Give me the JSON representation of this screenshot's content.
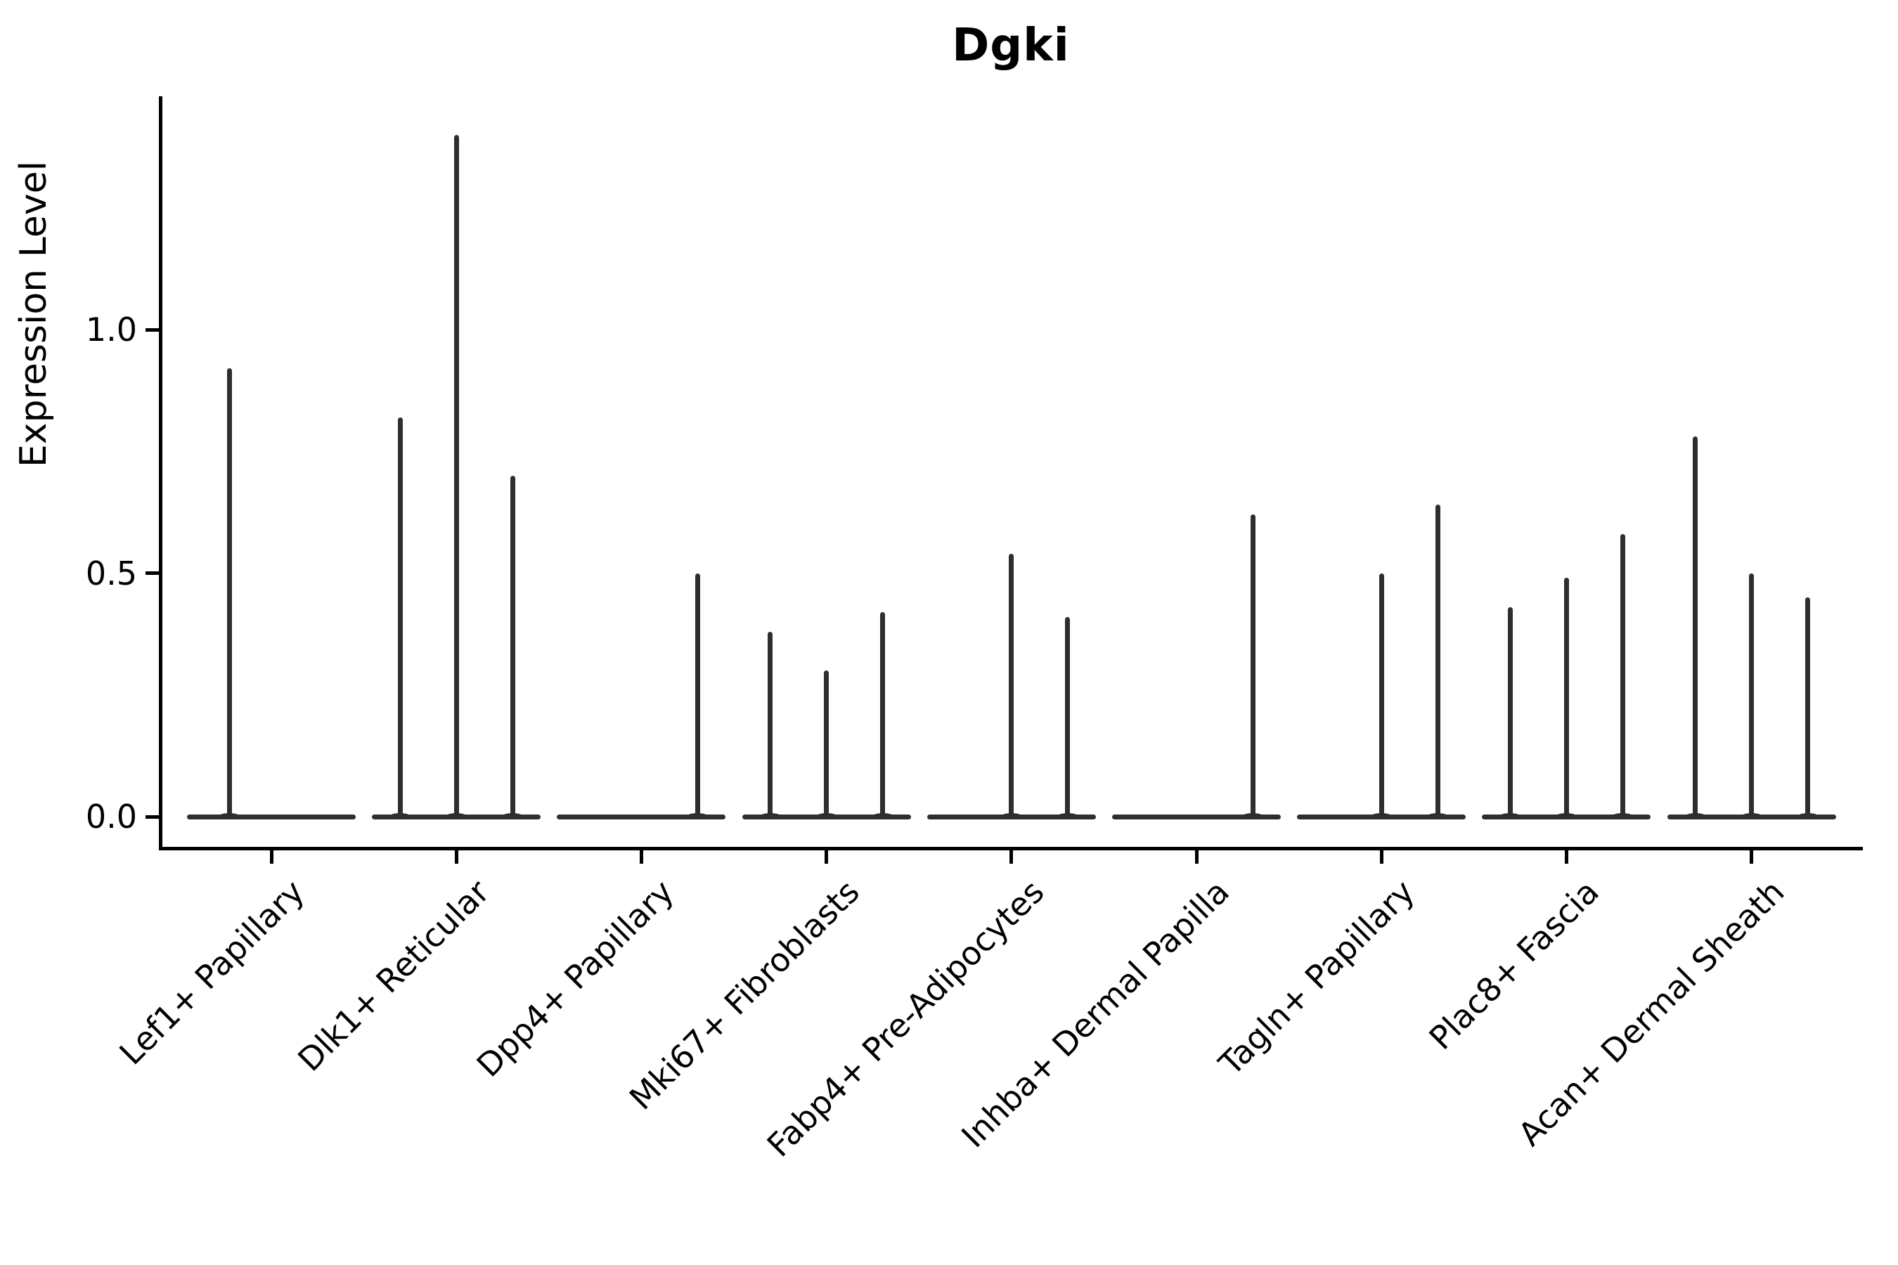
{
  "header": {
    "title": "Dgki"
  },
  "axes": {
    "y_label": "Expression Level",
    "y_tick_labels": [
      "0.0",
      "0.5",
      "1.0"
    ]
  },
  "colors": {
    "violin": "#2e2e2e",
    "axis": "#000000",
    "background": "#ffffff",
    "text": "#000000"
  },
  "chart_data": {
    "type": "violin",
    "title": "Dgki",
    "xlabel": "",
    "ylabel": "Expression Level",
    "ylim": [
      -0.07,
      1.48
    ],
    "yticks": [
      0.0,
      0.5,
      1.0
    ],
    "grid": false,
    "legend": "none",
    "note": "Each category shows thin violins (mostly zero-inflated expression); value is the max expression spike height per violin; offset is the violin position in px relative to category center",
    "categories": [
      "Lef1+ Papillary",
      "Dlk1+ Reticular",
      "Dpp4+ Papillary",
      "Mki67+ Fibroblasts",
      "Fabp4+ Pre-Adipocytes",
      "Inhba+ Dermal Papilla",
      "Tagln+ Papillary",
      "Plac8+ Fascia",
      "Acan+ Dermal Sheath"
    ],
    "groups": [
      {
        "label": "Lef1+ Papillary",
        "spikes": [
          {
            "offset": -60,
            "max": 0.92
          }
        ]
      },
      {
        "label": "Dlk1+ Reticular",
        "spikes": [
          {
            "offset": -80,
            "max": 0.82
          },
          {
            "offset": 0,
            "max": 1.4
          },
          {
            "offset": 80,
            "max": 0.7
          }
        ]
      },
      {
        "label": "Dpp4+ Papillary",
        "spikes": [
          {
            "offset": 80,
            "max": 0.5
          }
        ]
      },
      {
        "label": "Mki67+ Fibroblasts",
        "spikes": [
          {
            "offset": -80,
            "max": 0.38
          },
          {
            "offset": 0,
            "max": 0.3
          },
          {
            "offset": 80,
            "max": 0.42
          }
        ]
      },
      {
        "label": "Fabp4+ Pre-Adipocytes",
        "spikes": [
          {
            "offset": 0,
            "max": 0.54
          },
          {
            "offset": 80,
            "max": 0.41
          }
        ]
      },
      {
        "label": "Inhba+ Dermal Papilla",
        "spikes": [
          {
            "offset": 80,
            "max": 0.62
          }
        ]
      },
      {
        "label": "Tagln+ Papillary",
        "spikes": [
          {
            "offset": 0,
            "max": 0.5
          },
          {
            "offset": 80,
            "max": 0.64
          }
        ]
      },
      {
        "label": "Plac8+ Fascia",
        "spikes": [
          {
            "offset": -80,
            "max": 0.43
          },
          {
            "offset": 0,
            "max": 0.49
          },
          {
            "offset": 80,
            "max": 0.58
          }
        ]
      },
      {
        "label": "Acan+ Dermal Sheath",
        "spikes": [
          {
            "offset": -80,
            "max": 0.78
          },
          {
            "offset": 0,
            "max": 0.5
          },
          {
            "offset": 80,
            "max": 0.45
          }
        ]
      }
    ]
  }
}
